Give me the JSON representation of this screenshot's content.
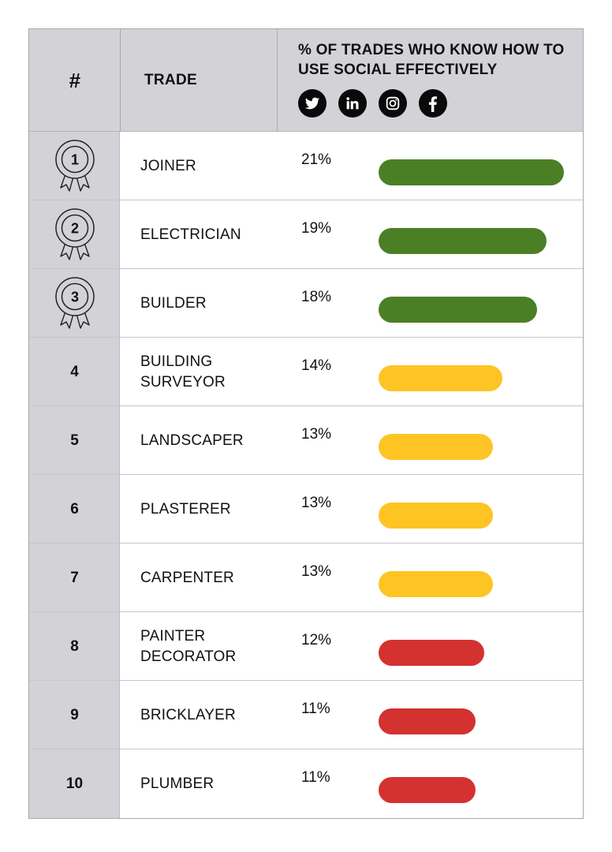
{
  "header": {
    "rank_label": "#",
    "trade_label": "TRADE",
    "pct_label": "% OF TRADES WHO KNOW HOW TO USE SOCIAL EFFECTIVELY",
    "social_icons": [
      "twitter-icon",
      "linkedin-icon",
      "instagram-icon",
      "facebook-icon"
    ]
  },
  "colors": {
    "high": "#4b7f25",
    "mid": "#fec424",
    "low": "#d43131",
    "header_bg": "#d3d2d7"
  },
  "rows": [
    {
      "rank": "1",
      "medal": true,
      "trade": "JOINER",
      "pct": "21%",
      "value": 21,
      "tier": "high"
    },
    {
      "rank": "2",
      "medal": true,
      "trade": "ELECTRICIAN",
      "pct": "19%",
      "value": 19,
      "tier": "high"
    },
    {
      "rank": "3",
      "medal": true,
      "trade": "BUILDER",
      "pct": "18%",
      "value": 18,
      "tier": "high"
    },
    {
      "rank": "4",
      "medal": false,
      "trade": "BUILDING SURVEYOR",
      "pct": "14%",
      "value": 14,
      "tier": "mid"
    },
    {
      "rank": "5",
      "medal": false,
      "trade": "LANDSCAPER",
      "pct": "13%",
      "value": 13,
      "tier": "mid"
    },
    {
      "rank": "6",
      "medal": false,
      "trade": "PLASTERER",
      "pct": "13%",
      "value": 13,
      "tier": "mid"
    },
    {
      "rank": "7",
      "medal": false,
      "trade": "CARPENTER",
      "pct": "13%",
      "value": 13,
      "tier": "mid"
    },
    {
      "rank": "8",
      "medal": false,
      "trade": "PAINTER DECORATOR",
      "pct": "12%",
      "value": 12,
      "tier": "low"
    },
    {
      "rank": "9",
      "medal": false,
      "trade": "BRICKLAYER",
      "pct": "11%",
      "value": 11,
      "tier": "low"
    },
    {
      "rank": "10",
      "medal": false,
      "trade": "PLUMBER",
      "pct": "11%",
      "value": 11,
      "tier": "low"
    }
  ],
  "chart_data": {
    "type": "bar",
    "orientation": "horizontal",
    "title": "% OF TRADES WHO KNOW HOW TO USE SOCIAL EFFECTIVELY",
    "xlabel": "",
    "ylabel": "TRADE",
    "categories": [
      "JOINER",
      "ELECTRICIAN",
      "BUILDER",
      "BUILDING SURVEYOR",
      "LANDSCAPER",
      "PLASTERER",
      "CARPENTER",
      "PAINTER DECORATOR",
      "BRICKLAYER",
      "PLUMBER"
    ],
    "values": [
      21,
      19,
      18,
      14,
      13,
      13,
      13,
      12,
      11,
      11
    ],
    "ranks": [
      1,
      2,
      3,
      4,
      5,
      6,
      7,
      8,
      9,
      10
    ],
    "bar_colors": [
      "#4b7f25",
      "#4b7f25",
      "#4b7f25",
      "#fec424",
      "#fec424",
      "#fec424",
      "#fec424",
      "#d43131",
      "#d43131",
      "#d43131"
    ],
    "units": "%",
    "grid": false,
    "legend": null
  }
}
